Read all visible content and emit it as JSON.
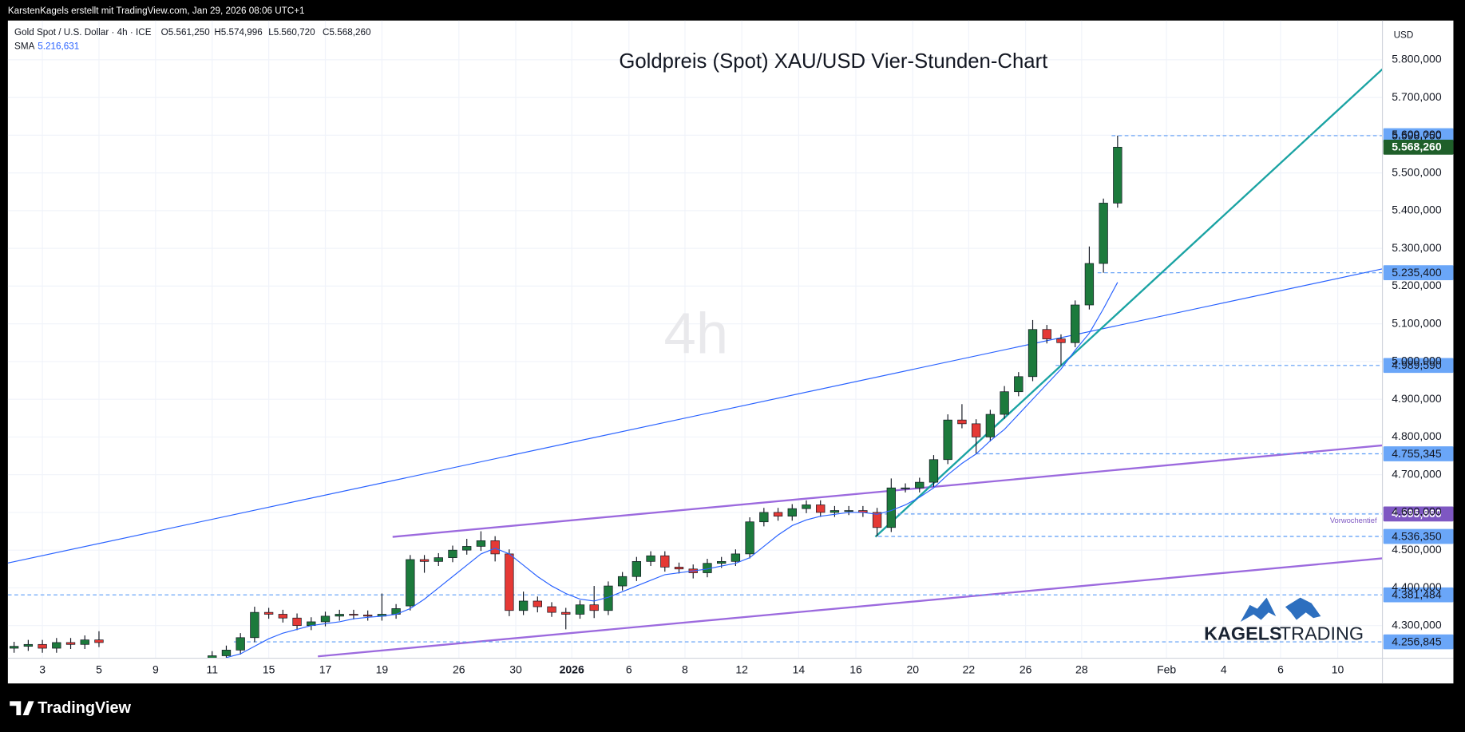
{
  "header": {
    "attribution": "KarstenKagels erstellt mit TradingView.com, Jan 29, 2026 08:06 UTC+1",
    "symbol": "Gold Spot / U.S. Dollar · 4h · ICE",
    "ohlc": [
      {
        "value": 5561.25,
        "label": "O5.561,250"
      },
      {
        "value": 5574.996,
        "label": "H5.574,996"
      },
      {
        "value": 5560.72,
        "label": "L5.560,720"
      },
      {
        "value": 5568.26,
        "label": "C5.568,260"
      }
    ],
    "sma_label": "SMA",
    "sma_value": {
      "value": 5216.631,
      "label": "5.216,631"
    }
  },
  "footer": {
    "brand": "TradingView"
  },
  "chart_data": {
    "type": "candlestick",
    "title": "Goldpreis (Spot) XAU/USD Vier-Stunden-Chart",
    "watermark": "4h",
    "currency": "USD",
    "annotation": "Vorwochentief",
    "logo": [
      "KAGELS",
      "TRADING"
    ],
    "up_color": "#1c7a3c",
    "down_color": "#e53935",
    "grid": true,
    "x": [
      0,
      0.5,
      1,
      1.5,
      2,
      2.5,
      3,
      7,
      7.5,
      8,
      8.5,
      9,
      9.5,
      10,
      10.5,
      11,
      11.5,
      12,
      12.5,
      13,
      13.5,
      14,
      14.5,
      15,
      15.5,
      16,
      16.5,
      17,
      17.5,
      18,
      18.5,
      19,
      19.5,
      20,
      20.5,
      21,
      21.5,
      22,
      22.5,
      23,
      23.5,
      24,
      24.5,
      25,
      25.5,
      26,
      26.5,
      27,
      27.5,
      28,
      28.5,
      29,
      29.5,
      30,
      30.5,
      31,
      31.5,
      32,
      32.5,
      33,
      33.5,
      34,
      34.5,
      35,
      35.5,
      36,
      36.5,
      37,
      37.5,
      38,
      38.5,
      39
    ],
    "open": [
      4240,
      4245,
      4250,
      4240,
      4255,
      4250,
      4262,
      4210,
      4220,
      4235,
      4268,
      4335,
      4330,
      4320,
      4300,
      4310,
      4325,
      4330,
      4328,
      4325,
      4330,
      4352,
      4475,
      4470,
      4480,
      4500,
      4510,
      4525,
      4490,
      4340,
      4365,
      4350,
      4335,
      4330,
      4355,
      4340,
      4405,
      4430,
      4470,
      4485,
      4455,
      4450,
      4440,
      4465,
      4470,
      4490,
      4575,
      4600,
      4590,
      4610,
      4620,
      4600,
      4605,
      4605,
      4600,
      4560,
      4665,
      4665,
      4680,
      4740,
      4845,
      4835,
      4800,
      4860,
      4920,
      4960,
      5085,
      5060,
      5050,
      5150,
      5260,
      5420
    ],
    "high": [
      4257,
      4262,
      4262,
      4267,
      4267,
      4274,
      4285,
      4232,
      4247,
      4280,
      4350,
      4347,
      4342,
      4332,
      4322,
      4337,
      4342,
      4342,
      4340,
      4385,
      4357,
      4487,
      4487,
      4492,
      4512,
      4530,
      4550,
      4537,
      4502,
      4390,
      4377,
      4362,
      4347,
      4367,
      4405,
      4417,
      4442,
      4482,
      4497,
      4497,
      4467,
      4462,
      4477,
      4482,
      4502,
      4587,
      4612,
      4612,
      4622,
      4632,
      4632,
      4617,
      4617,
      4617,
      4612,
      4690,
      4677,
      4692,
      4752,
      4860,
      4887,
      4847,
      4872,
      4935,
      4972,
      5110,
      5097,
      5072,
      5162,
      5305,
      5432,
      5598.75
    ],
    "low": [
      4228,
      4233,
      4228,
      4228,
      4238,
      4238,
      4243,
      4198,
      4208,
      4223,
      4256,
      4318,
      4308,
      4288,
      4288,
      4298,
      4313,
      4316,
      4313,
      4313,
      4318,
      4340,
      4440,
      4458,
      4468,
      4488,
      4498,
      4470,
      4325,
      4328,
      4335,
      4323,
      4290,
      4318,
      4320,
      4328,
      4393,
      4418,
      4458,
      4443,
      4438,
      4425,
      4428,
      4453,
      4458,
      4478,
      4563,
      4578,
      4578,
      4598,
      4588,
      4588,
      4593,
      4588,
      4536.35,
      4548,
      4653,
      4653,
      4668,
      4728,
      4823,
      4755.345,
      4788,
      4848,
      4908,
      4948,
      5048,
      4989.59,
      5038,
      5138,
      5235.4,
      5408
    ],
    "close": [
      4245,
      4250,
      4240,
      4255,
      4250,
      4262,
      4255,
      4220,
      4235,
      4268,
      4335,
      4330,
      4320,
      4300,
      4310,
      4325,
      4330,
      4328,
      4325,
      4330,
      4345,
      4475,
      4470,
      4480,
      4500,
      4510,
      4525,
      4490,
      4340,
      4365,
      4350,
      4335,
      4330,
      4355,
      4340,
      4405,
      4430,
      4470,
      4485,
      4455,
      4450,
      4440,
      4465,
      4470,
      4490,
      4575,
      4600,
      4590,
      4610,
      4620,
      4600,
      4605,
      4605,
      4600,
      4560,
      4665,
      4665,
      4680,
      4740,
      4845,
      4835,
      4800,
      4860,
      4920,
      4960,
      5085,
      5060,
      5050,
      5150,
      5260,
      5420,
      5568.26
    ],
    "sma": {
      "name": "SMA",
      "color": "#2962ff",
      "values": [
        null,
        null,
        null,
        null,
        null,
        null,
        null,
        null,
        4215,
        4225,
        4245,
        4265,
        4280,
        4290,
        4300,
        4305,
        4310,
        4318,
        4322,
        4325,
        4330,
        4345,
        4370,
        4400,
        4430,
        4460,
        4490,
        4505,
        4490,
        4460,
        4430,
        4405,
        4385,
        4370,
        4365,
        4375,
        4390,
        4405,
        4420,
        4435,
        4440,
        4445,
        4450,
        4458,
        4465,
        4480,
        4510,
        4540,
        4565,
        4580,
        4590,
        4595,
        4600,
        4600,
        4595,
        4605,
        4620,
        4640,
        4665,
        4700,
        4730,
        4755,
        4790,
        4820,
        4860,
        4900,
        4940,
        4980,
        5030,
        5075,
        5140,
        5210
      ]
    },
    "xlim": [
      -0.22,
      48.36
    ],
    "xticks": [
      {
        "value": 1,
        "label": "3"
      },
      {
        "value": 3,
        "label": "5"
      },
      {
        "value": 5,
        "label": "9"
      },
      {
        "value": 7,
        "label": "11"
      },
      {
        "value": 9,
        "label": "15"
      },
      {
        "value": 11,
        "label": "17"
      },
      {
        "value": 13,
        "label": "19"
      },
      {
        "value": 15.72,
        "label": "26"
      },
      {
        "value": 17.73,
        "label": "30"
      },
      {
        "value": 19.71,
        "label": "2026"
      },
      {
        "value": 21.73,
        "label": "6"
      },
      {
        "value": 23.71,
        "label": "8"
      },
      {
        "value": 25.72,
        "label": "12"
      },
      {
        "value": 27.73,
        "label": "14"
      },
      {
        "value": 29.75,
        "label": "16"
      },
      {
        "value": 31.76,
        "label": "20"
      },
      {
        "value": 33.74,
        "label": "22"
      },
      {
        "value": 35.75,
        "label": "26"
      },
      {
        "value": 37.73,
        "label": "28"
      },
      {
        "value": 40.73,
        "label": "Feb"
      },
      {
        "value": 42.75,
        "label": "4"
      },
      {
        "value": 44.76,
        "label": "6"
      },
      {
        "value": 46.78,
        "label": "10"
      }
    ],
    "ylim": [
      4213.4,
      5904
    ],
    "yticks": [
      {
        "value": 4300,
        "label": "4.300,000"
      },
      {
        "value": 4400,
        "label": "4.400,000"
      },
      {
        "value": 4500,
        "label": "4.500,000"
      },
      {
        "value": 4600,
        "label": "4.600,000"
      },
      {
        "value": 4700,
        "label": "4.700,000"
      },
      {
        "value": 4800,
        "label": "4.800,000"
      },
      {
        "value": 4900,
        "label": "4.900,000"
      },
      {
        "value": 5000,
        "label": "5.000,000"
      },
      {
        "value": 5100,
        "label": "5.100,000"
      },
      {
        "value": 5200,
        "label": "5.200,000"
      },
      {
        "value": 5300,
        "label": "5.300,000"
      },
      {
        "value": 5400,
        "label": "5.400,000"
      },
      {
        "value": 5500,
        "label": "5.500,000"
      },
      {
        "value": 5600,
        "label": "5.600,000"
      },
      {
        "value": 5700,
        "label": "5.700,000"
      },
      {
        "value": 5800,
        "label": "5.800,000"
      }
    ],
    "price_labels": [
      {
        "value": 5598.75,
        "label": "5.598,750",
        "color": "#6aa6f8"
      },
      {
        "value": 5568.26,
        "label": "5.568,260",
        "color": "#1f5f2a"
      },
      {
        "value": 5235.4,
        "label": "5.235,400",
        "color": "#6aa6f8"
      },
      {
        "value": 4989.59,
        "label": "4.989,590",
        "color": "#6aa6f8"
      },
      {
        "value": 4755.345,
        "label": "4.755,345",
        "color": "#6aa6f8"
      },
      {
        "value": 4595.86,
        "label": "4.595,860",
        "color": "#7e57c2"
      },
      {
        "value": 4536.35,
        "label": "4.536,350",
        "color": "#6aa6f8"
      },
      {
        "value": 4381.484,
        "label": "4.381,484",
        "color": "#6aa6f8"
      },
      {
        "value": 4256.845,
        "label": "4.256,845",
        "color": "#6aa6f8"
      }
    ]
  }
}
